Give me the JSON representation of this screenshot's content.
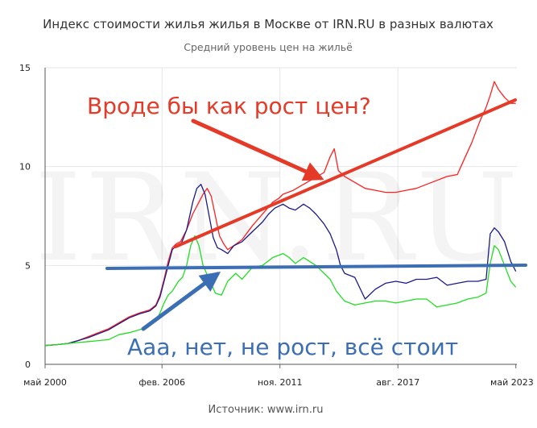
{
  "title": "Индекс стоимости жилья жилья в Москве от IRN.RU в разных валютах",
  "subtitle": "Средний уровень цен на жильё",
  "source": "Источник: www.irn.ru",
  "watermark": "IRN.RU",
  "colors": {
    "red": "#ff2020",
    "navy": "#1a1a8c",
    "green": "#22dd22",
    "annotation_red": "#e53a28",
    "annotation_blue": "#3c6eb4",
    "grid": "#e6e6e6"
  },
  "annotations": {
    "red_text": "Вроде бы как рост цен?",
    "blue_text": "Ааа, нет, не рост, всё стоит"
  },
  "chart_data": {
    "type": "line",
    "title": "Индекс стоимости жилья жилья в Москве от IRN.RU в разных валютах",
    "subtitle": "Средний уровень цен на жильё",
    "xlabel": "",
    "ylabel": "",
    "ylim": [
      0,
      15
    ],
    "xlim": [
      2000.4,
      2023.4
    ],
    "grid": "vertical and horizontal",
    "legend": "none",
    "x_tick_labels": [
      {
        "x": 2000.4,
        "label": "май 2000"
      },
      {
        "x": 2006.1,
        "label": "фев. 2006"
      },
      {
        "x": 2011.85,
        "label": "ноя. 2011"
      },
      {
        "x": 2017.6,
        "label": "авг. 2017"
      },
      {
        "x": 2023.35,
        "label": "май 2023"
      }
    ],
    "y_ticks": [
      0,
      5,
      10,
      15
    ],
    "series": [
      {
        "color": "#ff2020",
        "points": [
          [
            2000.4,
            0.95
          ],
          [
            2001,
            1.0
          ],
          [
            2001.5,
            1.05
          ],
          [
            2002,
            1.2
          ],
          [
            2002.5,
            1.4
          ],
          [
            2003,
            1.6
          ],
          [
            2003.5,
            1.8
          ],
          [
            2004,
            2.1
          ],
          [
            2004.5,
            2.4
          ],
          [
            2005,
            2.6
          ],
          [
            2005.5,
            2.75
          ],
          [
            2005.8,
            3.0
          ],
          [
            2006,
            3.5
          ],
          [
            2006.2,
            4.3
          ],
          [
            2006.4,
            5.2
          ],
          [
            2006.6,
            5.9
          ],
          [
            2006.8,
            6.1
          ],
          [
            2007,
            6.2
          ],
          [
            2007.3,
            6.8
          ],
          [
            2007.6,
            7.6
          ],
          [
            2007.9,
            8.2
          ],
          [
            2008.1,
            8.6
          ],
          [
            2008.3,
            8.9
          ],
          [
            2008.5,
            8.5
          ],
          [
            2008.7,
            7.5
          ],
          [
            2008.9,
            6.5
          ],
          [
            2009.1,
            6.1
          ],
          [
            2009.3,
            5.8
          ],
          [
            2009.6,
            6.0
          ],
          [
            2010,
            6.3
          ],
          [
            2010.5,
            7.0
          ],
          [
            2011,
            7.6
          ],
          [
            2011.5,
            8.2
          ],
          [
            2011.8,
            8.4
          ],
          [
            2012,
            8.6
          ],
          [
            2012.5,
            8.8
          ],
          [
            2013,
            9.1
          ],
          [
            2013.5,
            9.4
          ],
          [
            2014,
            9.7
          ],
          [
            2014.3,
            10.5
          ],
          [
            2014.5,
            10.9
          ],
          [
            2014.7,
            9.8
          ],
          [
            2015,
            9.5
          ],
          [
            2015.5,
            9.2
          ],
          [
            2016,
            8.9
          ],
          [
            2016.5,
            8.8
          ],
          [
            2017,
            8.7
          ],
          [
            2017.5,
            8.7
          ],
          [
            2018,
            8.8
          ],
          [
            2018.5,
            8.9
          ],
          [
            2019,
            9.1
          ],
          [
            2019.5,
            9.3
          ],
          [
            2020,
            9.5
          ],
          [
            2020.5,
            9.6
          ],
          [
            2020.8,
            10.3
          ],
          [
            2021.2,
            11.2
          ],
          [
            2021.6,
            12.3
          ],
          [
            2021.9,
            13.0
          ],
          [
            2022.1,
            13.6
          ],
          [
            2022.3,
            14.3
          ],
          [
            2022.5,
            13.9
          ],
          [
            2022.8,
            13.5
          ],
          [
            2023.1,
            13.2
          ],
          [
            2023.35,
            13.2
          ]
        ]
      },
      {
        "color": "#1a1a8c",
        "points": [
          [
            2000.4,
            0.95
          ],
          [
            2001,
            1.0
          ],
          [
            2001.5,
            1.05
          ],
          [
            2002,
            1.2
          ],
          [
            2002.5,
            1.35
          ],
          [
            2003,
            1.55
          ],
          [
            2003.5,
            1.75
          ],
          [
            2004,
            2.05
          ],
          [
            2004.5,
            2.35
          ],
          [
            2005,
            2.55
          ],
          [
            2005.5,
            2.7
          ],
          [
            2005.8,
            2.95
          ],
          [
            2006,
            3.4
          ],
          [
            2006.2,
            4.2
          ],
          [
            2006.4,
            5.0
          ],
          [
            2006.6,
            5.8
          ],
          [
            2006.8,
            6.0
          ],
          [
            2007,
            6.0
          ],
          [
            2007.3,
            6.8
          ],
          [
            2007.6,
            8.2
          ],
          [
            2007.8,
            8.9
          ],
          [
            2008,
            9.1
          ],
          [
            2008.2,
            8.6
          ],
          [
            2008.4,
            7.5
          ],
          [
            2008.6,
            6.4
          ],
          [
            2008.8,
            5.9
          ],
          [
            2009,
            5.8
          ],
          [
            2009.3,
            5.6
          ],
          [
            2009.6,
            6.0
          ],
          [
            2010,
            6.2
          ],
          [
            2010.5,
            6.7
          ],
          [
            2011,
            7.2
          ],
          [
            2011.3,
            7.6
          ],
          [
            2011.6,
            7.9
          ],
          [
            2012,
            8.1
          ],
          [
            2012.3,
            7.9
          ],
          [
            2012.6,
            7.8
          ],
          [
            2013,
            8.1
          ],
          [
            2013.3,
            7.9
          ],
          [
            2013.6,
            7.6
          ],
          [
            2014,
            7.1
          ],
          [
            2014.3,
            6.6
          ],
          [
            2014.6,
            5.8
          ],
          [
            2014.8,
            5.0
          ],
          [
            2015,
            4.6
          ],
          [
            2015.5,
            4.4
          ],
          [
            2016,
            3.3
          ],
          [
            2016.5,
            3.8
          ],
          [
            2017,
            4.1
          ],
          [
            2017.5,
            4.2
          ],
          [
            2018,
            4.1
          ],
          [
            2018.5,
            4.3
          ],
          [
            2019,
            4.3
          ],
          [
            2019.5,
            4.4
          ],
          [
            2020,
            4.0
          ],
          [
            2020.5,
            4.1
          ],
          [
            2021,
            4.2
          ],
          [
            2021.5,
            4.2
          ],
          [
            2021.9,
            4.3
          ],
          [
            2022.1,
            6.6
          ],
          [
            2022.3,
            6.9
          ],
          [
            2022.5,
            6.7
          ],
          [
            2022.8,
            6.2
          ],
          [
            2023.1,
            5.2
          ],
          [
            2023.35,
            4.7
          ]
        ]
      },
      {
        "color": "#22dd22",
        "points": [
          [
            2000.4,
            0.95
          ],
          [
            2001,
            1.0
          ],
          [
            2001.5,
            1.05
          ],
          [
            2002,
            1.1
          ],
          [
            2002.5,
            1.15
          ],
          [
            2003,
            1.2
          ],
          [
            2003.5,
            1.25
          ],
          [
            2004,
            1.5
          ],
          [
            2004.5,
            1.6
          ],
          [
            2005,
            1.75
          ],
          [
            2005.5,
            1.95
          ],
          [
            2005.8,
            2.2
          ],
          [
            2006,
            2.6
          ],
          [
            2006.2,
            3.1
          ],
          [
            2006.4,
            3.5
          ],
          [
            2006.6,
            3.7
          ],
          [
            2006.9,
            4.2
          ],
          [
            2007.1,
            4.4
          ],
          [
            2007.3,
            5.0
          ],
          [
            2007.5,
            6.0
          ],
          [
            2007.7,
            6.5
          ],
          [
            2007.9,
            6.0
          ],
          [
            2008.1,
            5.0
          ],
          [
            2008.4,
            4.3
          ],
          [
            2008.7,
            3.6
          ],
          [
            2009,
            3.5
          ],
          [
            2009.3,
            4.2
          ],
          [
            2009.7,
            4.6
          ],
          [
            2010,
            4.3
          ],
          [
            2010.5,
            4.9
          ],
          [
            2011,
            5.0
          ],
          [
            2011.5,
            5.4
          ],
          [
            2012,
            5.6
          ],
          [
            2012.3,
            5.4
          ],
          [
            2012.6,
            5.1
          ],
          [
            2013,
            5.4
          ],
          [
            2013.3,
            5.2
          ],
          [
            2013.6,
            5.0
          ],
          [
            2014,
            4.6
          ],
          [
            2014.3,
            4.3
          ],
          [
            2014.6,
            3.7
          ],
          [
            2015,
            3.2
          ],
          [
            2015.5,
            3.0
          ],
          [
            2016,
            3.1
          ],
          [
            2016.5,
            3.2
          ],
          [
            2017,
            3.2
          ],
          [
            2017.5,
            3.1
          ],
          [
            2018,
            3.2
          ],
          [
            2018.5,
            3.3
          ],
          [
            2019,
            3.3
          ],
          [
            2019.5,
            2.9
          ],
          [
            2020,
            3.0
          ],
          [
            2020.5,
            3.1
          ],
          [
            2021,
            3.3
          ],
          [
            2021.5,
            3.4
          ],
          [
            2021.9,
            3.6
          ],
          [
            2022.1,
            5.1
          ],
          [
            2022.3,
            6.0
          ],
          [
            2022.5,
            5.8
          ],
          [
            2022.8,
            5.0
          ],
          [
            2023.1,
            4.2
          ],
          [
            2023.35,
            3.9
          ]
        ]
      }
    ]
  }
}
